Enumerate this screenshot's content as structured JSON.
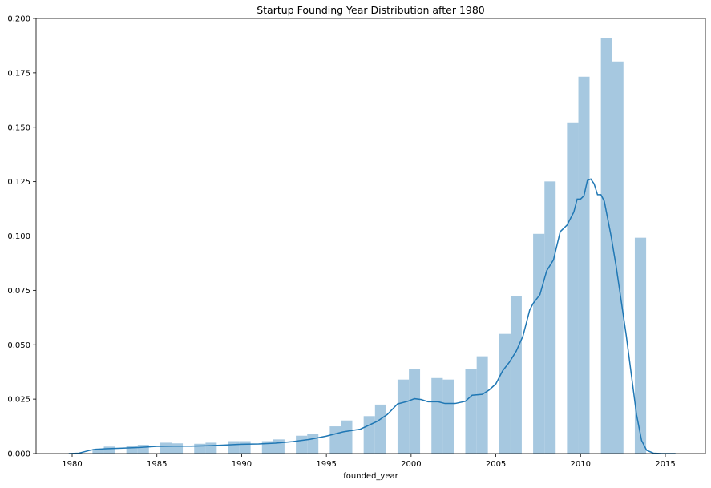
{
  "chart_data": {
    "type": "bar",
    "title": "Startup Founding Year Distribution after 1980",
    "xlabel": "founded_year",
    "ylabel": "",
    "xlim": [
      1978.2,
      1981.5
    ],
    "xlim_full": [
      1978.2,
      1986.5
    ],
    "ylim": [
      0,
      0.2
    ],
    "x_ticks": [
      1980,
      1985,
      1990,
      1995,
      2000,
      2005,
      2010,
      2015
    ],
    "y_ticks": [
      "0.000",
      "0.025",
      "0.050",
      "0.075",
      "0.100",
      "0.125",
      "0.150",
      "0.175",
      "0.200"
    ],
    "grid": false,
    "legend": "none",
    "bar_color": "#a6c8e0",
    "line_color": "#1f77b4",
    "series": [
      {
        "type": "histogram",
        "bins": [
          {
            "x0": 1981.2,
            "x1": 1981.87,
            "value": 0.0022
          },
          {
            "x0": 1981.87,
            "x1": 1982.53,
            "value": 0.0032
          },
          {
            "x0": 1983.2,
            "x1": 1983.87,
            "value": 0.0035
          },
          {
            "x0": 1983.87,
            "x1": 1984.53,
            "value": 0.004
          },
          {
            "x0": 1985.2,
            "x1": 1985.87,
            "value": 0.005
          },
          {
            "x0": 1985.87,
            "x1": 1986.53,
            "value": 0.0047
          },
          {
            "x0": 1987.2,
            "x1": 1987.87,
            "value": 0.0045
          },
          {
            "x0": 1987.87,
            "x1": 1988.53,
            "value": 0.005
          },
          {
            "x0": 1989.2,
            "x1": 1989.87,
            "value": 0.0057
          },
          {
            "x0": 1989.87,
            "x1": 1990.53,
            "value": 0.0057
          },
          {
            "x0": 1991.2,
            "x1": 1991.87,
            "value": 0.0057
          },
          {
            "x0": 1991.87,
            "x1": 1992.53,
            "value": 0.0065
          },
          {
            "x0": 1993.2,
            "x1": 1993.87,
            "value": 0.0082
          },
          {
            "x0": 1993.87,
            "x1": 1994.53,
            "value": 0.009
          },
          {
            "x0": 1995.2,
            "x1": 1995.87,
            "value": 0.0125
          },
          {
            "x0": 1995.87,
            "x1": 1996.53,
            "value": 0.0152
          },
          {
            "x0": 1997.2,
            "x1": 1997.87,
            "value": 0.0172
          },
          {
            "x0": 1997.87,
            "x1": 1998.53,
            "value": 0.0225
          },
          {
            "x0": 1999.2,
            "x1": 1999.87,
            "value": 0.034
          },
          {
            "x0": 1999.87,
            "x1": 2000.53,
            "value": 0.0387
          },
          {
            "x0": 2001.2,
            "x1": 2001.87,
            "value": 0.0347
          },
          {
            "x0": 2001.87,
            "x1": 2002.53,
            "value": 0.034
          },
          {
            "x0": 2003.2,
            "x1": 2003.87,
            "value": 0.0387
          },
          {
            "x0": 2003.87,
            "x1": 2004.53,
            "value": 0.0447
          },
          {
            "x0": 2005.2,
            "x1": 2005.87,
            "value": 0.055
          },
          {
            "x0": 2005.87,
            "x1": 2006.53,
            "value": 0.0722
          },
          {
            "x0": 2007.2,
            "x1": 2007.87,
            "value": 0.101
          },
          {
            "x0": 2007.87,
            "x1": 2008.53,
            "value": 0.1251
          },
          {
            "x0": 2009.2,
            "x1": 2009.87,
            "value": 0.1522
          },
          {
            "x0": 2009.87,
            "x1": 2010.53,
            "value": 0.1732
          },
          {
            "x0": 2011.2,
            "x1": 2011.87,
            "value": 0.191
          },
          {
            "x0": 2011.87,
            "x1": 2012.53,
            "value": 0.1802
          },
          {
            "x0": 2013.2,
            "x1": 2013.87,
            "value": 0.0992
          }
        ]
      },
      {
        "type": "kde_line",
        "points": [
          [
            1979.8,
            0.0
          ],
          [
            1980.4,
            0.0002
          ],
          [
            1981.0,
            0.0014
          ],
          [
            1981.4,
            0.002
          ],
          [
            1982.0,
            0.0022
          ],
          [
            1983.0,
            0.0025
          ],
          [
            1984.0,
            0.0028
          ],
          [
            1985.0,
            0.0033
          ],
          [
            1986.0,
            0.0034
          ],
          [
            1987.0,
            0.0034
          ],
          [
            1988.0,
            0.0036
          ],
          [
            1989.0,
            0.0039
          ],
          [
            1990.0,
            0.0043
          ],
          [
            1991.0,
            0.0044
          ],
          [
            1992.0,
            0.0048
          ],
          [
            1993.0,
            0.0055
          ],
          [
            1994.0,
            0.0065
          ],
          [
            1995.0,
            0.008
          ],
          [
            1996.0,
            0.01
          ],
          [
            1997.0,
            0.0112
          ],
          [
            1998.0,
            0.0148
          ],
          [
            1998.6,
            0.018
          ],
          [
            1999.2,
            0.0228
          ],
          [
            1999.8,
            0.024
          ],
          [
            2000.2,
            0.0252
          ],
          [
            2000.6,
            0.0248
          ],
          [
            2001.0,
            0.0238
          ],
          [
            2001.6,
            0.0238
          ],
          [
            2002.0,
            0.023
          ],
          [
            2002.6,
            0.023
          ],
          [
            2003.2,
            0.024
          ],
          [
            2003.6,
            0.0268
          ],
          [
            2004.2,
            0.0272
          ],
          [
            2004.6,
            0.0292
          ],
          [
            2005.0,
            0.032
          ],
          [
            2005.4,
            0.038
          ],
          [
            2005.8,
            0.042
          ],
          [
            2006.2,
            0.047
          ],
          [
            2006.6,
            0.054
          ],
          [
            2007.0,
            0.066
          ],
          [
            2007.2,
            0.069
          ],
          [
            2007.6,
            0.073
          ],
          [
            2008.0,
            0.084
          ],
          [
            2008.4,
            0.089
          ],
          [
            2008.8,
            0.102
          ],
          [
            2009.2,
            0.105
          ],
          [
            2009.6,
            0.111
          ],
          [
            2009.8,
            0.117
          ],
          [
            2010.0,
            0.117
          ],
          [
            2010.2,
            0.1185
          ],
          [
            2010.4,
            0.1255
          ],
          [
            2010.6,
            0.1262
          ],
          [
            2010.8,
            0.124
          ],
          [
            2011.0,
            0.119
          ],
          [
            2011.2,
            0.119
          ],
          [
            2011.4,
            0.116
          ],
          [
            2011.8,
            0.1
          ],
          [
            2012.1,
            0.086
          ],
          [
            2012.4,
            0.07
          ],
          [
            2012.7,
            0.054
          ],
          [
            2013.0,
            0.036
          ],
          [
            2013.3,
            0.018
          ],
          [
            2013.6,
            0.006
          ],
          [
            2013.9,
            0.0015
          ],
          [
            2014.3,
            0.0002
          ],
          [
            2014.8,
            0.0
          ],
          [
            2015.6,
            0.0
          ]
        ]
      }
    ]
  }
}
